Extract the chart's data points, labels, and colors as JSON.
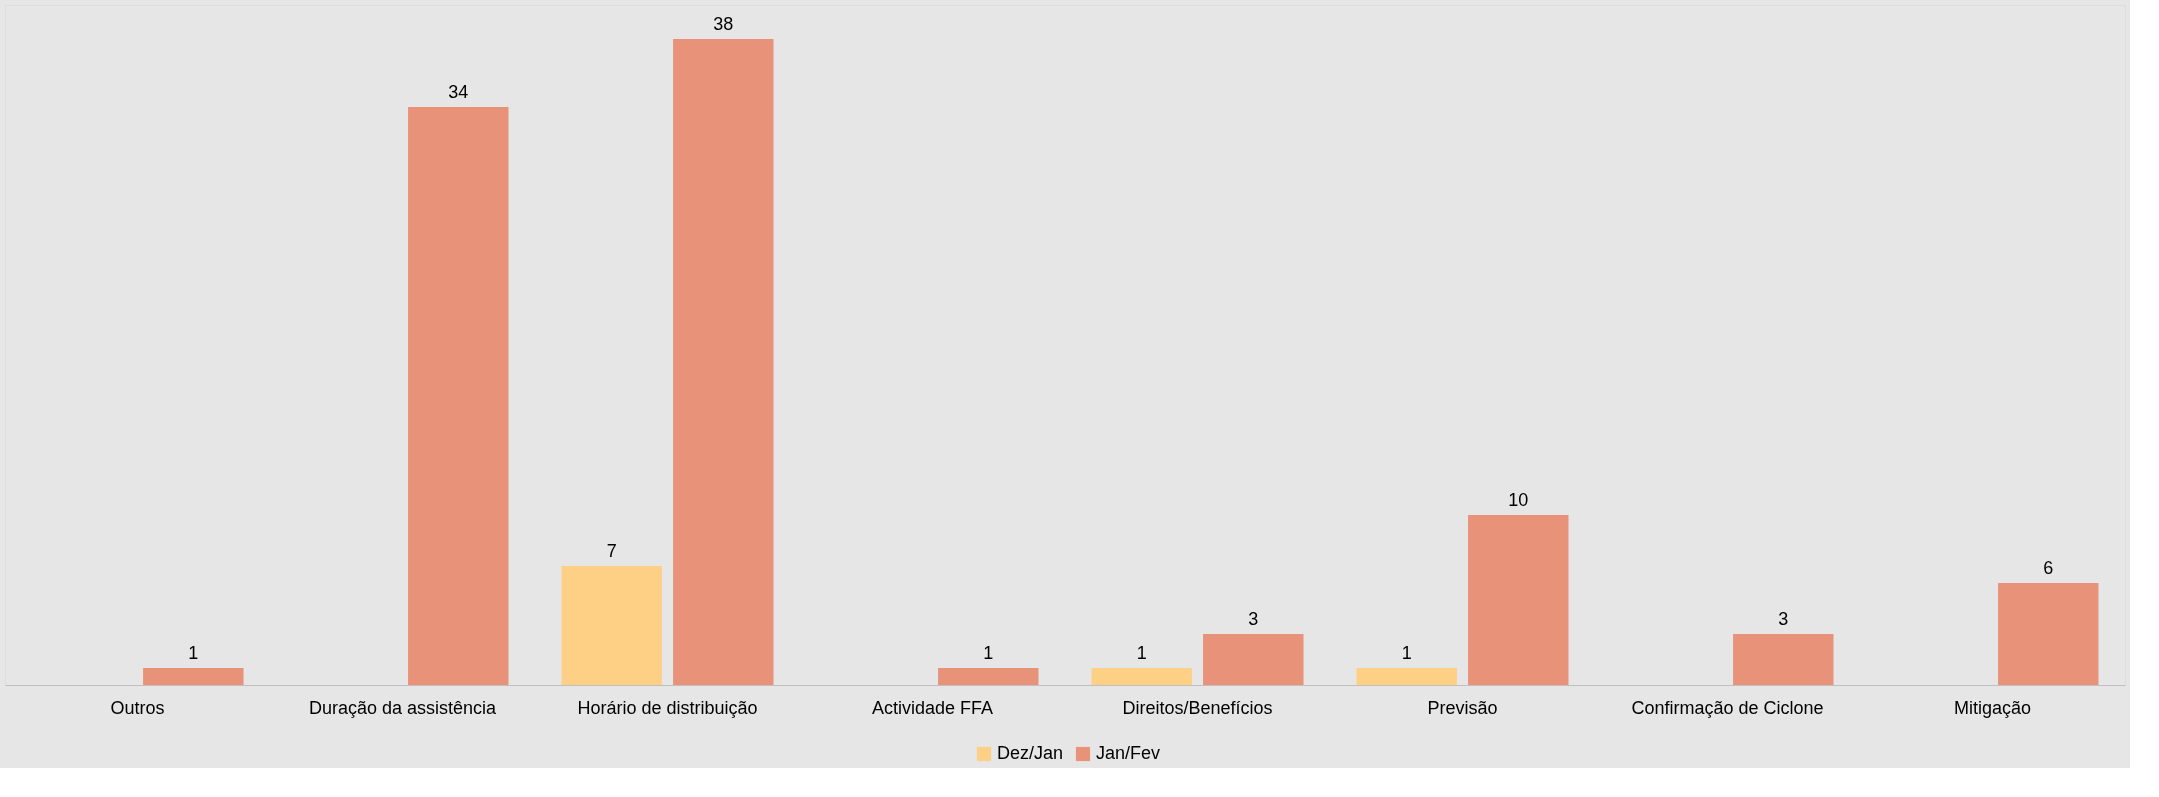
{
  "chart_data": {
    "type": "bar",
    "categories": [
      "Outros",
      "Duração da assistência",
      "Horário de distribuição",
      "Actividade FFA",
      "Direitos/Benefícios",
      "Previsão",
      "Confirmação de Ciclone",
      "Mitigação"
    ],
    "series": [
      {
        "name": "Dez/Jan",
        "color": "#fdd086",
        "values": [
          null,
          null,
          7,
          null,
          1,
          1,
          null,
          null
        ]
      },
      {
        "name": "Jan/Fev",
        "color": "#e8927a",
        "values": [
          1,
          34,
          38,
          1,
          3,
          10,
          3,
          6
        ]
      }
    ],
    "data_labels": true,
    "legend": "bottom"
  }
}
